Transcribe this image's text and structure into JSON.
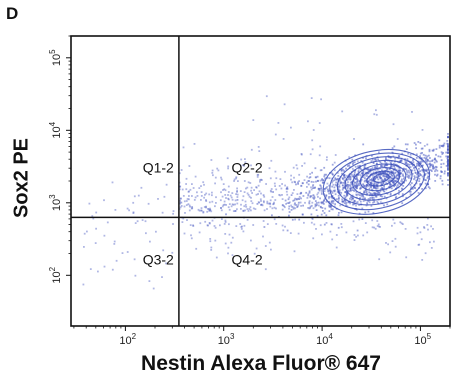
{
  "panel_label": "D",
  "chart_data": {
    "type": "scatter",
    "subtype": "flow-cytometry density contour",
    "xlabel": "Nestin Alexa Fluor® 647",
    "ylabel": "Sox2 PE",
    "x_scale": "log",
    "y_scale": "log",
    "xlim": [
      28,
      200000
    ],
    "ylim": [
      20,
      200000
    ],
    "x_ticks": [
      {
        "base": "10",
        "exp": "2",
        "value": 100
      },
      {
        "base": "10",
        "exp": "3",
        "value": 1000
      },
      {
        "base": "10",
        "exp": "4",
        "value": 10000
      },
      {
        "base": "10",
        "exp": "5",
        "value": 100000
      }
    ],
    "y_ticks": [
      {
        "base": "10",
        "exp": "2",
        "value": 100
      },
      {
        "base": "10",
        "exp": "3",
        "value": 1000
      },
      {
        "base": "10",
        "exp": "4",
        "value": 10000
      },
      {
        "base": "10",
        "exp": "5",
        "value": 100000
      }
    ],
    "gates": {
      "x_threshold": 350,
      "y_threshold": 630
    },
    "quadrants": [
      {
        "label": "Q1-2",
        "x": 150,
        "y": 2600
      },
      {
        "label": "Q2-2",
        "x": 1200,
        "y": 2600
      },
      {
        "label": "Q3-2",
        "x": 150,
        "y": 140
      },
      {
        "label": "Q4-2",
        "x": 1200,
        "y": 140
      }
    ],
    "population_center": {
      "x": 40000,
      "y": 2200
    },
    "grid": false,
    "legend": "none",
    "colors": {
      "dots": "#4f5fc4",
      "contours": "#3a4fb8",
      "axes": "#111111"
    }
  }
}
